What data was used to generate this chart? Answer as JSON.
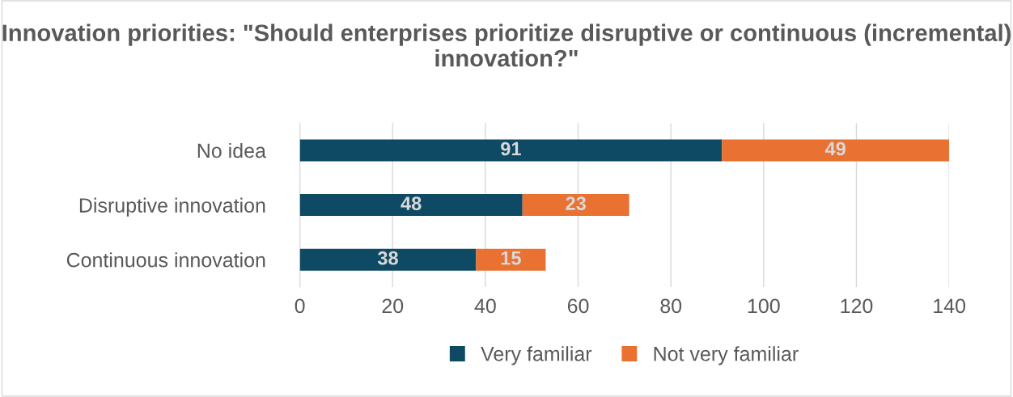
{
  "chart_data": {
    "type": "bar",
    "orientation": "horizontal",
    "stacked": true,
    "title": "Innovation priorities: \"Should enterprises prioritize disruptive or continuous (incremental) innovation?\"",
    "categories": [
      "No idea",
      "Disruptive innovation",
      "Continuous innovation"
    ],
    "series": [
      {
        "name": "Very familiar",
        "color": "#0e4a63",
        "values": [
          91,
          48,
          38
        ]
      },
      {
        "name": "Not very familiar",
        "color": "#e97132",
        "values": [
          49,
          23,
          15
        ]
      }
    ],
    "xlim": [
      0,
      140
    ],
    "xticks": [
      0,
      20,
      40,
      60,
      80,
      100,
      120,
      140
    ],
    "grid": "x",
    "legend": "bottom",
    "data_labels": true
  }
}
